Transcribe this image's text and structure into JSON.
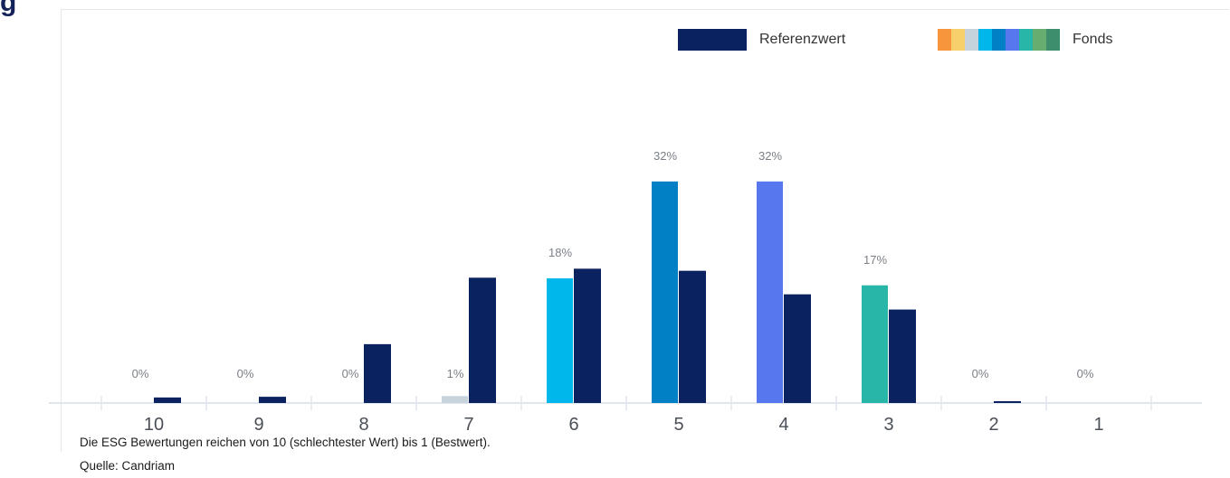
{
  "heading_fragment": "g",
  "legend": {
    "reference_label": "Referenzwert",
    "fund_label": "Fonds",
    "fund_colors": [
      "#f7953c",
      "#f7cf6b",
      "#c7d3dc",
      "#00b7eb",
      "#0280c6",
      "#5677ee",
      "#28b6a8",
      "#66ad6f",
      "#3c8e6c"
    ]
  },
  "colors": {
    "reference": "#0b2260",
    "axis": "#dfe6ee",
    "value_label": "#7a7f87",
    "tick_label": "#4a4f57"
  },
  "chart_data": {
    "type": "bar",
    "categories": [
      "10",
      "9",
      "8",
      "7",
      "6",
      "5",
      "4",
      "3",
      "2",
      "1"
    ],
    "series": [
      {
        "name": "Fonds",
        "values": [
          0,
          0,
          0,
          1,
          18,
          32,
          32,
          17,
          0,
          0
        ],
        "value_labels": [
          "0%",
          "0%",
          "0%",
          "1%",
          "18%",
          "32%",
          "32%",
          "17%",
          "0%",
          "0%"
        ],
        "colors": [
          "#f7953c",
          "#f7cf6b",
          "#c7d3dc",
          "#c7d3dc",
          "#00b7eb",
          "#0280c6",
          "#5677ee",
          "#28b6a8",
          "#66ad6f",
          "#3c8e6c"
        ]
      },
      {
        "name": "Referenzwert",
        "values": [
          0.8,
          0.9,
          8.5,
          18.1,
          19.4,
          19.1,
          15.7,
          13.5,
          0.2,
          0
        ]
      }
    ],
    "ylim": [
      0,
      32.5
    ],
    "legend_position": "top-right"
  },
  "footnote": {
    "scale_note": "Die ESG Bewertungen reichen von 10 (schlechtester Wert) bis 1 (Bestwert).",
    "source": "Quelle: Candriam"
  }
}
